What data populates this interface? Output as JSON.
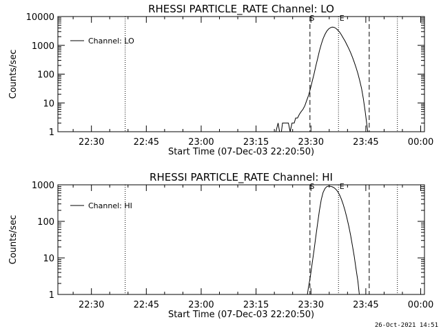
{
  "footer_timestamp": "26-Oct-2021 14:51",
  "chart_data": [
    {
      "type": "line",
      "title": "RHESSI PARTICLE_RATE Channel: LO",
      "xlabel": "Start Time (07-Dec-03 22:20:50)",
      "ylabel": "Counts/sec",
      "yscale": "log",
      "xlim": [
        0,
        100.2
      ],
      "ylim": [
        1,
        10000
      ],
      "x_ticks": [
        {
          "x": 9.17,
          "label": "22:30"
        },
        {
          "x": 24.17,
          "label": "22:45"
        },
        {
          "x": 39.17,
          "label": "23:00"
        },
        {
          "x": 54.17,
          "label": "23:15"
        },
        {
          "x": 69.17,
          "label": "23:30"
        },
        {
          "x": 84.17,
          "label": "23:45"
        },
        {
          "x": 99.17,
          "label": "00:00"
        }
      ],
      "y_ticks": [
        {
          "y": 1,
          "label": "1"
        },
        {
          "y": 10,
          "label": "10"
        },
        {
          "y": 100,
          "label": "100"
        },
        {
          "y": 1000,
          "label": "1000"
        },
        {
          "y": 10000,
          "label": "10000"
        }
      ],
      "legend": {
        "label": "Channel: LO",
        "position": "top-left"
      },
      "vlines": [
        {
          "x": 18.4,
          "style": "dotted"
        },
        {
          "x": 68.9,
          "style": "dashed",
          "label": "S"
        },
        {
          "x": 76.7,
          "style": "dotted",
          "label": "E"
        },
        {
          "x": 85.1,
          "style": "dashed"
        },
        {
          "x": 92.8,
          "style": "dotted"
        }
      ],
      "series": [
        {
          "name": "Channel: LO",
          "points": [
            [
              59.6,
              1
            ],
            [
              60.2,
              2
            ],
            [
              60.6,
              1
            ],
            [
              61.1,
              1
            ],
            [
              61.4,
              2
            ],
            [
              63.0,
              2
            ],
            [
              63.5,
              1
            ],
            [
              64.0,
              2
            ],
            [
              64.6,
              2
            ],
            [
              65.0,
              3
            ],
            [
              65.5,
              3
            ],
            [
              66.0,
              4
            ],
            [
              66.5,
              5
            ],
            [
              67.0,
              6
            ],
            [
              67.5,
              8
            ],
            [
              68.0,
              12
            ],
            [
              68.5,
              18
            ],
            [
              69.0,
              30
            ],
            [
              69.5,
              55
            ],
            [
              70.0,
              100
            ],
            [
              70.5,
              190
            ],
            [
              71.0,
              350
            ],
            [
              71.5,
              650
            ],
            [
              72.0,
              1100
            ],
            [
              72.5,
              1700
            ],
            [
              73.0,
              2400
            ],
            [
              73.5,
              3100
            ],
            [
              74.0,
              3700
            ],
            [
              74.5,
              4100
            ],
            [
              75.0,
              4300
            ],
            [
              75.5,
              4200
            ],
            [
              76.0,
              3900
            ],
            [
              76.5,
              3400
            ],
            [
              77.0,
              2900
            ],
            [
              77.5,
              2300
            ],
            [
              78.0,
              1800
            ],
            [
              78.5,
              1400
            ],
            [
              79.0,
              1050
            ],
            [
              79.5,
              780
            ],
            [
              80.0,
              560
            ],
            [
              80.5,
              390
            ],
            [
              81.0,
              260
            ],
            [
              81.5,
              170
            ],
            [
              82.0,
              105
            ],
            [
              82.5,
              60
            ],
            [
              83.0,
              32
            ],
            [
              83.5,
              14
            ],
            [
              84.0,
              5
            ],
            [
              84.4,
              2
            ],
            [
              84.7,
              1
            ]
          ]
        }
      ]
    },
    {
      "type": "line",
      "title": "RHESSI PARTICLE_RATE Channel: HI",
      "xlabel": "Start Time (07-Dec-03 22:20:50)",
      "ylabel": "Counts/sec",
      "yscale": "log",
      "xlim": [
        0,
        100.2
      ],
      "ylim": [
        1,
        1000
      ],
      "x_ticks": [
        {
          "x": 9.17,
          "label": "22:30"
        },
        {
          "x": 24.17,
          "label": "22:45"
        },
        {
          "x": 39.17,
          "label": "23:00"
        },
        {
          "x": 54.17,
          "label": "23:15"
        },
        {
          "x": 69.17,
          "label": "23:30"
        },
        {
          "x": 84.17,
          "label": "23:45"
        },
        {
          "x": 99.17,
          "label": "00:00"
        }
      ],
      "y_ticks": [
        {
          "y": 1,
          "label": "1"
        },
        {
          "y": 10,
          "label": "10"
        },
        {
          "y": 100,
          "label": "100"
        },
        {
          "y": 1000,
          "label": "1000"
        }
      ],
      "legend": {
        "label": "Channel: HI",
        "position": "top-left"
      },
      "vlines": [
        {
          "x": 18.4,
          "style": "dotted"
        },
        {
          "x": 68.9,
          "style": "dashed",
          "label": "S"
        },
        {
          "x": 76.7,
          "style": "dotted",
          "label": "E"
        },
        {
          "x": 85.1,
          "style": "dashed"
        },
        {
          "x": 92.8,
          "style": "dotted"
        }
      ],
      "series": [
        {
          "name": "Channel: HI",
          "points": [
            [
              68.2,
              1
            ],
            [
              68.5,
              1.6
            ],
            [
              69.0,
              3
            ],
            [
              69.5,
              7
            ],
            [
              70.0,
              16
            ],
            [
              70.5,
              38
            ],
            [
              71.0,
              90
            ],
            [
              71.5,
              200
            ],
            [
              72.0,
              400
            ],
            [
              72.5,
              620
            ],
            [
              73.0,
              790
            ],
            [
              73.5,
              890
            ],
            [
              74.0,
              920
            ],
            [
              74.5,
              910
            ],
            [
              75.0,
              880
            ],
            [
              75.5,
              830
            ],
            [
              76.0,
              750
            ],
            [
              76.5,
              650
            ],
            [
              77.0,
              530
            ],
            [
              77.5,
              400
            ],
            [
              78.0,
              290
            ],
            [
              78.5,
              195
            ],
            [
              79.0,
              125
            ],
            [
              79.5,
              75
            ],
            [
              80.0,
              42
            ],
            [
              80.5,
              22
            ],
            [
              81.0,
              11
            ],
            [
              81.5,
              5
            ],
            [
              82.0,
              2.3
            ],
            [
              82.3,
              1.2
            ],
            [
              82.4,
              1
            ]
          ]
        }
      ]
    }
  ]
}
